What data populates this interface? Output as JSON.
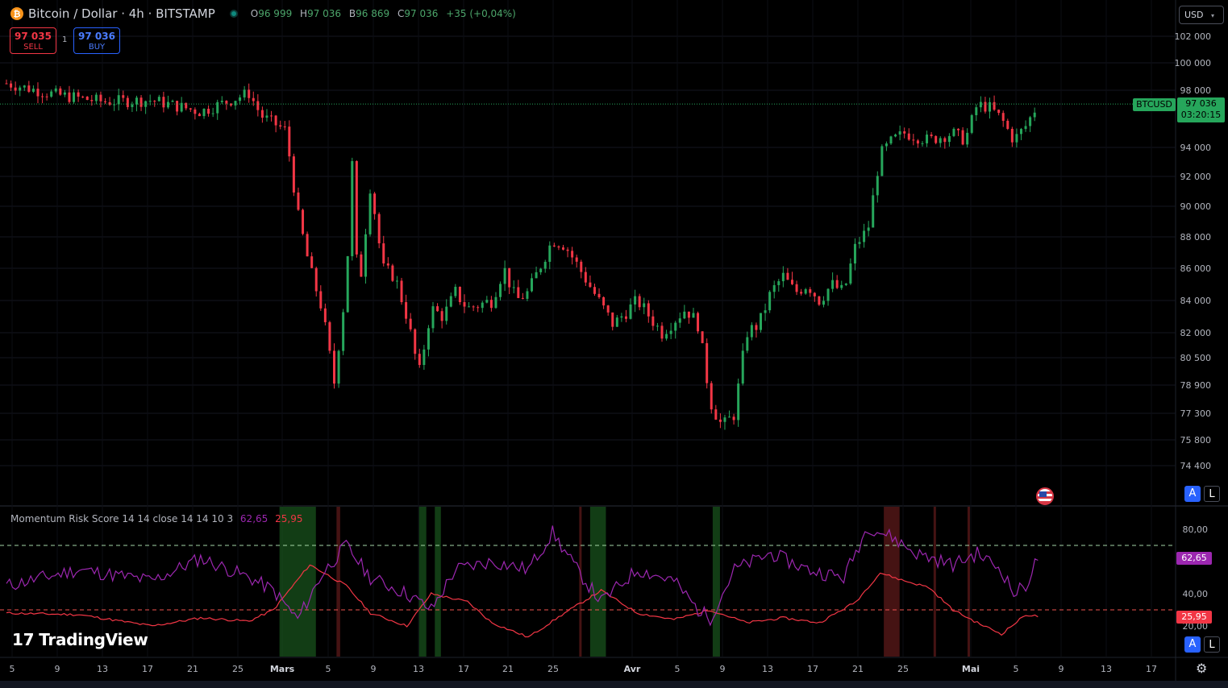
{
  "header": {
    "symbol_title": "Bitcoin / Dollar · 4h · BITSTAMP",
    "coin_icon": "bitcoin-icon",
    "ohlc": {
      "open_label": "O",
      "open": "96 999",
      "high_label": "H",
      "high": "97 036",
      "low_label": "B",
      "low": "96 869",
      "close_label": "C",
      "close": "97 036",
      "change": "+35 (+0,04%)"
    }
  },
  "trade": {
    "sell_price": "97 035",
    "sell_label": "SELL",
    "buy_price": "97 036",
    "buy_label": "BUY",
    "quantity": "1"
  },
  "currency_selector": "USD",
  "last_price": {
    "symbol": "BTCUSD",
    "price": "97 036",
    "countdown": "03:20:15"
  },
  "indicator": {
    "name": "Momentum Risk Score",
    "params": "14 14 close 14 14 10 3",
    "value_primary": "62,65",
    "value_secondary": "25,95"
  },
  "buttons": {
    "auto": "A",
    "log": "L"
  },
  "branding": {
    "logo_text": "TradingView",
    "logo_mark": "17"
  },
  "colors": {
    "up": "#26a65b",
    "down": "#f23645",
    "indicator_line": "#9c27b0",
    "signal_line": "#f23645",
    "bull_zone": "#1b5e20",
    "bear_zone": "#5c1a1a"
  },
  "chart_data": [
    {
      "type": "candlestick",
      "title": "Bitcoin / Dollar · 4h · BITSTAMP",
      "y_ticks": [
        "102 000",
        "100 000",
        "98 000",
        "94 000",
        "92 000",
        "90 000",
        "88 000",
        "86 000",
        "84 000",
        "82 000",
        "80 500",
        "78 900",
        "77 300",
        "75 800",
        "74 400"
      ],
      "x_ticks": [
        "5",
        "9",
        "13",
        "17",
        "21",
        "25",
        "Mars",
        "5",
        "9",
        "13",
        "17",
        "21",
        "25",
        "Avr",
        "5",
        "9",
        "13",
        "17",
        "21",
        "25",
        "Mai",
        "5",
        "9",
        "13",
        "17"
      ],
      "close_path": [
        {
          "t": 0,
          "close": 98500
        },
        {
          "t": 4,
          "close": 97700
        },
        {
          "t": 8,
          "close": 97200
        },
        {
          "t": 12,
          "close": 97300
        },
        {
          "t": 16,
          "close": 96500
        },
        {
          "t": 20,
          "close": 97800
        },
        {
          "t": 21,
          "close": 96200
        },
        {
          "t": 23,
          "close": 95200
        },
        {
          "t": 24,
          "close": 89500
        },
        {
          "t": 25,
          "close": 86000
        },
        {
          "t": 26,
          "close": 83500
        },
        {
          "t": 27,
          "close": 79000
        },
        {
          "t": 28,
          "close": 85000
        },
        {
          "t": 28.5,
          "close": 93000
        },
        {
          "t": 29,
          "close": 84000
        },
        {
          "t": 30,
          "close": 91500
        },
        {
          "t": 31,
          "close": 86000
        },
        {
          "t": 32,
          "close": 85500
        },
        {
          "t": 33,
          "close": 83000
        },
        {
          "t": 34,
          "close": 79500
        },
        {
          "t": 35,
          "close": 83500
        },
        {
          "t": 36,
          "close": 83000
        },
        {
          "t": 37,
          "close": 84500
        },
        {
          "t": 38,
          "close": 83500
        },
        {
          "t": 40,
          "close": 84000
        },
        {
          "t": 41,
          "close": 86000
        },
        {
          "t": 42,
          "close": 84000
        },
        {
          "t": 43,
          "close": 84500
        },
        {
          "t": 45,
          "close": 87800
        },
        {
          "t": 46,
          "close": 87500
        },
        {
          "t": 48,
          "close": 85000
        },
        {
          "t": 50,
          "close": 82500
        },
        {
          "t": 52,
          "close": 84000
        },
        {
          "t": 54,
          "close": 82000
        },
        {
          "t": 56,
          "close": 83500
        },
        {
          "t": 57,
          "close": 82500
        },
        {
          "t": 58,
          "close": 78000
        },
        {
          "t": 59,
          "close": 76500
        },
        {
          "t": 60,
          "close": 77300
        },
        {
          "t": 61,
          "close": 82000
        },
        {
          "t": 62,
          "close": 82500
        },
        {
          "t": 63,
          "close": 84500
        },
        {
          "t": 64,
          "close": 85500
        },
        {
          "t": 65,
          "close": 84500
        },
        {
          "t": 66,
          "close": 85000
        },
        {
          "t": 67,
          "close": 84000
        },
        {
          "t": 68,
          "close": 85000
        },
        {
          "t": 69,
          "close": 84500
        },
        {
          "t": 70,
          "close": 87500
        },
        {
          "t": 71,
          "close": 88500
        },
        {
          "t": 72,
          "close": 93500
        },
        {
          "t": 73,
          "close": 94500
        },
        {
          "t": 74,
          "close": 95000
        },
        {
          "t": 76,
          "close": 94500
        },
        {
          "t": 78,
          "close": 95000
        },
        {
          "t": 79,
          "close": 94500
        },
        {
          "t": 80,
          "close": 97000
        },
        {
          "t": 81,
          "close": 96800
        },
        {
          "t": 82,
          "close": 96000
        },
        {
          "t": 83,
          "close": 94500
        },
        {
          "t": 84,
          "close": 95500
        },
        {
          "t": 85,
          "close": 97036
        }
      ]
    },
    {
      "type": "line",
      "title": "Momentum Risk Score",
      "y_ticks": [
        "80,00",
        "40,00",
        "20,00"
      ],
      "upper_level": 70,
      "lower_level": 30,
      "momentum": [
        {
          "t": 0,
          "value": 45
        },
        {
          "t": 6,
          "value": 55
        },
        {
          "t": 12,
          "value": 48
        },
        {
          "t": 16,
          "value": 62
        },
        {
          "t": 20,
          "value": 50
        },
        {
          "t": 22,
          "value": 42
        },
        {
          "t": 24,
          "value": 24
        },
        {
          "t": 26,
          "value": 52
        },
        {
          "t": 28,
          "value": 70
        },
        {
          "t": 30,
          "value": 50
        },
        {
          "t": 33,
          "value": 40
        },
        {
          "t": 35,
          "value": 30
        },
        {
          "t": 37,
          "value": 55
        },
        {
          "t": 40,
          "value": 60
        },
        {
          "t": 43,
          "value": 55
        },
        {
          "t": 45,
          "value": 78
        },
        {
          "t": 47,
          "value": 55
        },
        {
          "t": 49,
          "value": 35
        },
        {
          "t": 52,
          "value": 55
        },
        {
          "t": 55,
          "value": 48
        },
        {
          "t": 57,
          "value": 30
        },
        {
          "t": 58,
          "value": 25
        },
        {
          "t": 60,
          "value": 55
        },
        {
          "t": 63,
          "value": 65
        },
        {
          "t": 66,
          "value": 55
        },
        {
          "t": 69,
          "value": 50
        },
        {
          "t": 71,
          "value": 82
        },
        {
          "t": 73,
          "value": 75
        },
        {
          "t": 75,
          "value": 65
        },
        {
          "t": 78,
          "value": 58
        },
        {
          "t": 80,
          "value": 65
        },
        {
          "t": 82,
          "value": 55
        },
        {
          "t": 83,
          "value": 40
        },
        {
          "t": 84,
          "value": 45
        },
        {
          "t": 85,
          "value": 62.65
        }
      ],
      "signal": [
        {
          "t": 0,
          "value": 28
        },
        {
          "t": 6,
          "value": 27
        },
        {
          "t": 12,
          "value": 20
        },
        {
          "t": 16,
          "value": 25
        },
        {
          "t": 20,
          "value": 23
        },
        {
          "t": 22,
          "value": 30
        },
        {
          "t": 25,
          "value": 58
        },
        {
          "t": 28,
          "value": 45
        },
        {
          "t": 30,
          "value": 28
        },
        {
          "t": 33,
          "value": 20
        },
        {
          "t": 35,
          "value": 40
        },
        {
          "t": 38,
          "value": 35
        },
        {
          "t": 40,
          "value": 22
        },
        {
          "t": 43,
          "value": 13
        },
        {
          "t": 46,
          "value": 28
        },
        {
          "t": 49,
          "value": 42
        },
        {
          "t": 52,
          "value": 28
        },
        {
          "t": 55,
          "value": 24
        },
        {
          "t": 58,
          "value": 30
        },
        {
          "t": 61,
          "value": 22
        },
        {
          "t": 64,
          "value": 25
        },
        {
          "t": 67,
          "value": 22
        },
        {
          "t": 70,
          "value": 35
        },
        {
          "t": 72,
          "value": 53
        },
        {
          "t": 74,
          "value": 48
        },
        {
          "t": 76,
          "value": 44
        },
        {
          "t": 78,
          "value": 30
        },
        {
          "t": 80,
          "value": 22
        },
        {
          "t": 82,
          "value": 15
        },
        {
          "t": 84,
          "value": 27
        },
        {
          "t": 85,
          "value": 25.95
        }
      ],
      "bull_zones": [
        [
          22.5,
          25.5
        ],
        [
          34,
          34.6
        ],
        [
          35.3,
          35.8
        ],
        [
          48.1,
          49.4
        ],
        [
          58.2,
          58.8
        ]
      ],
      "bear_zones": [
        [
          27.2,
          27.5
        ],
        [
          47.2,
          47.4
        ],
        [
          72.3,
          73.6
        ],
        [
          76.4,
          76.6
        ],
        [
          79.2,
          79.4
        ]
      ]
    }
  ]
}
